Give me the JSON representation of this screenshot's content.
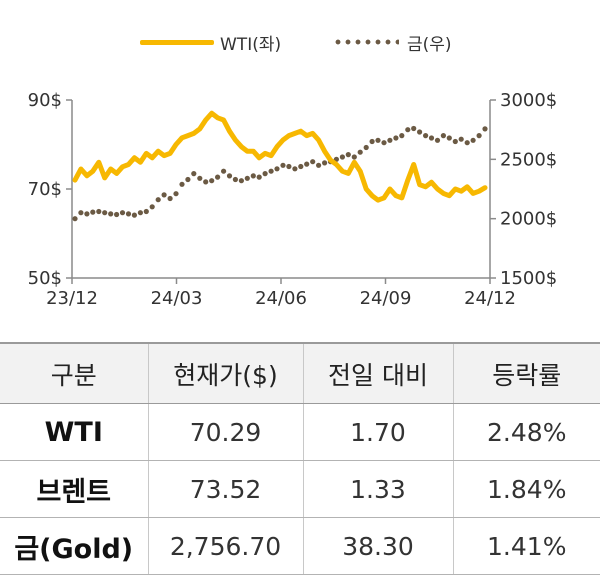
{
  "chart_data": {
    "type": "line",
    "x_ticks": [
      "23/12",
      "24/03",
      "24/06",
      "24/09",
      "24/12"
    ],
    "y_left_ticks": [
      "90$",
      "70$",
      "50$"
    ],
    "y_right_ticks": [
      "3000$",
      "2500$",
      "2000$",
      "1500$"
    ],
    "y_left_range": [
      50,
      90
    ],
    "y_right_range": [
      1500,
      3000
    ],
    "legend_position": "top",
    "series": [
      {
        "name": "WTI(좌)",
        "axis": "left",
        "style": "line",
        "color": "#f7b801",
        "values": [
          72.0,
          74.5,
          73.0,
          74.0,
          76.0,
          72.5,
          74.5,
          73.5,
          75.0,
          75.5,
          77.0,
          76.0,
          78.0,
          77.0,
          78.5,
          77.5,
          78.0,
          80.0,
          81.5,
          82.0,
          82.5,
          83.5,
          85.5,
          87.0,
          86.0,
          85.5,
          83.0,
          81.0,
          79.5,
          78.5,
          78.5,
          77.0,
          78.0,
          77.5,
          79.5,
          81.0,
          82.0,
          82.5,
          83.0,
          82.0,
          82.5,
          81.0,
          78.5,
          76.5,
          75.5,
          74.0,
          73.5,
          76.0,
          74.0,
          70.0,
          68.5,
          67.5,
          68.0,
          70.0,
          68.5,
          68.0,
          72.0,
          75.5,
          71.0,
          70.5,
          71.5,
          70.0,
          69.0,
          68.5,
          70.0,
          69.5,
          70.5,
          69.0,
          69.5,
          70.3
        ]
      },
      {
        "name": "금(우)",
        "axis": "right",
        "style": "dotted",
        "color": "#6b5a44",
        "values": [
          2000,
          2050,
          2040,
          2055,
          2060,
          2050,
          2040,
          2035,
          2050,
          2040,
          2030,
          2050,
          2060,
          2100,
          2160,
          2200,
          2170,
          2210,
          2290,
          2330,
          2380,
          2340,
          2310,
          2320,
          2350,
          2400,
          2360,
          2330,
          2320,
          2340,
          2360,
          2350,
          2380,
          2400,
          2420,
          2450,
          2440,
          2420,
          2440,
          2460,
          2480,
          2450,
          2470,
          2480,
          2500,
          2520,
          2540,
          2520,
          2560,
          2600,
          2650,
          2660,
          2640,
          2660,
          2680,
          2700,
          2750,
          2760,
          2730,
          2700,
          2680,
          2660,
          2700,
          2680,
          2650,
          2670,
          2640,
          2660,
          2700,
          2756.7
        ]
      }
    ]
  },
  "table": {
    "headers": [
      "구분",
      "현재가($)",
      "전일 대비",
      "등락률"
    ],
    "rows": [
      {
        "name": "WTI",
        "price": "70.29",
        "change": "1.70",
        "rate": "2.48%"
      },
      {
        "name": "브렌트",
        "price": "73.52",
        "change": "1.33",
        "rate": "1.84%"
      },
      {
        "name": "금(Gold)",
        "price": "2,756.70",
        "change": "38.30",
        "rate": "1.41%"
      }
    ]
  }
}
